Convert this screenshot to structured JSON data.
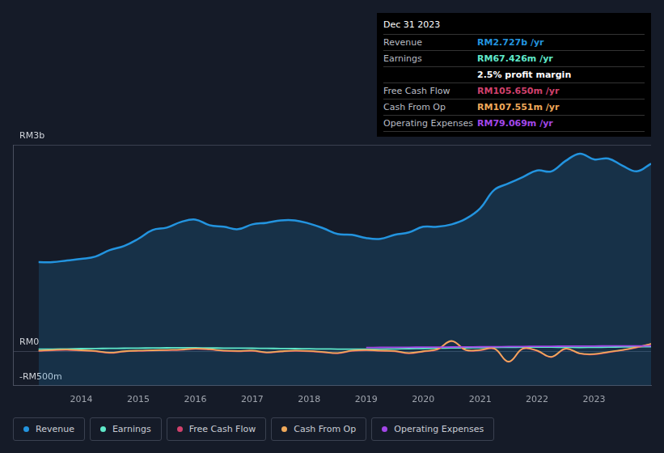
{
  "chart_data": {
    "type": "line",
    "x": [
      2013.25,
      2013.5,
      2013.75,
      2014,
      2014.25,
      2014.5,
      2014.75,
      2015,
      2015.25,
      2015.5,
      2015.75,
      2016,
      2016.25,
      2016.5,
      2016.75,
      2017,
      2017.25,
      2017.5,
      2017.75,
      2018,
      2018.25,
      2018.5,
      2018.75,
      2019,
      2019.25,
      2019.5,
      2019.75,
      2020,
      2020.25,
      2020.5,
      2020.75,
      2021,
      2021.25,
      2021.5,
      2021.75,
      2022,
      2022.25,
      2022.5,
      2022.75,
      2023,
      2023.25,
      2023.5,
      2023.75,
      2024
    ],
    "series": [
      {
        "name": "Revenue",
        "color": "#2394df",
        "values": [
          1295,
          1295,
          1320,
          1342,
          1377,
          1470,
          1529,
          1634,
          1762,
          1797,
          1879,
          1914,
          1832,
          1809,
          1774,
          1844,
          1867,
          1902,
          1902,
          1856,
          1786,
          1704,
          1692,
          1645,
          1634,
          1692,
          1727,
          1809,
          1809,
          1844,
          1926,
          2077,
          2346,
          2439,
          2532,
          2626,
          2614,
          2766,
          2871,
          2789,
          2801,
          2696,
          2614,
          2727
        ]
      },
      {
        "name": "Earnings",
        "color": "#5fe8c9",
        "values": [
          30,
          32,
          35,
          38,
          40,
          42,
          44,
          46,
          48,
          50,
          52,
          50,
          48,
          46,
          45,
          44,
          42,
          40,
          38,
          36,
          34,
          32,
          30,
          30,
          32,
          35,
          38,
          40,
          45,
          48,
          50,
          52,
          55,
          58,
          60,
          62,
          60,
          58,
          55,
          58,
          60,
          63,
          65,
          67
        ]
      },
      {
        "name": "Free Cash Flow",
        "color": "#d1416c",
        "values": [
          5,
          15,
          20,
          10,
          0,
          -25,
          -5,
          5,
          10,
          15,
          20,
          35,
          25,
          5,
          0,
          5,
          -20,
          -5,
          5,
          0,
          -15,
          -30,
          5,
          15,
          5,
          0,
          -30,
          -5,
          25,
          145,
          15,
          15,
          35,
          -155,
          35,
          5,
          -85,
          35,
          -35,
          -45,
          -15,
          15,
          55,
          106
        ]
      },
      {
        "name": "Cash From Op",
        "color": "#f0a95a",
        "values": [
          10,
          20,
          25,
          15,
          5,
          -20,
          0,
          10,
          15,
          20,
          25,
          40,
          30,
          10,
          5,
          10,
          -15,
          0,
          10,
          5,
          -10,
          -25,
          10,
          20,
          10,
          5,
          -25,
          0,
          30,
          150,
          20,
          20,
          40,
          -150,
          40,
          10,
          -80,
          40,
          -30,
          -40,
          -10,
          20,
          60,
          108
        ]
      },
      {
        "name": "Operating Expenses",
        "color": "#a347e8",
        "values": [
          null,
          null,
          null,
          null,
          null,
          null,
          null,
          null,
          null,
          null,
          null,
          null,
          null,
          null,
          null,
          null,
          null,
          null,
          null,
          null,
          null,
          null,
          null,
          55,
          56,
          57,
          58,
          60,
          60,
          62,
          63,
          65,
          66,
          68,
          70,
          72,
          73,
          74,
          75,
          76,
          77,
          78,
          78,
          79
        ]
      }
    ],
    "xlim": [
      2012.8,
      2024
    ],
    "xticks": [
      2014,
      2015,
      2016,
      2017,
      2018,
      2019,
      2020,
      2021,
      2022,
      2023
    ],
    "ylim": [
      -500,
      3000
    ],
    "yticks": [
      {
        "value": -500,
        "label": "-RM500m"
      },
      {
        "value": 0,
        "label": "RM0"
      },
      {
        "value": 3000,
        "label": "RM3b"
      }
    ],
    "grid": true,
    "legend": "bottom"
  },
  "info_box": {
    "date": "Dec 31 2023",
    "rows": [
      {
        "name": "Revenue",
        "value": "RM2.727b /yr"
      },
      {
        "name": "Earnings",
        "value": "RM67.426m /yr"
      },
      {
        "name": null,
        "value": "2.5% profit margin"
      },
      {
        "name": "Free Cash Flow",
        "value": "RM105.650m /yr"
      },
      {
        "name": "Cash From Op",
        "value": "RM107.551m /yr"
      },
      {
        "name": "Operating Expenses",
        "value": "RM79.069m /yr"
      }
    ]
  }
}
